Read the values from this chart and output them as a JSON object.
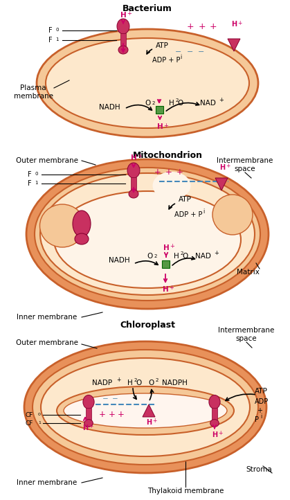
{
  "bg_color": "#ffffff",
  "mem_dark": "#c8602a",
  "mem_mid": "#e8915a",
  "mem_light": "#f5c898",
  "mem_inner": "#fde8cc",
  "mem_lightest": "#fef4e8",
  "protein_body": "#c83060",
  "protein_edge": "#880030",
  "green_box": "#559944",
  "blue_dash": "#4488bb",
  "magenta": "#cc0066",
  "cyan_minus": "#5588aa",
  "black": "#000000",
  "white": "#ffffff",
  "s1_title": "Bacterium",
  "s2_title": "Mitochondrion",
  "s3_title": "Chloroplast",
  "label_plasma": "Plasma\nmembrane",
  "label_outer": "Outer membrane",
  "label_inner1": "Inner membrane",
  "label_inner2": "Inner membrane",
  "label_intermem1": "Intermembrane\nspace",
  "label_intermem2": "Intermembrane\nspace",
  "label_matrix": "Matrix",
  "label_stroma": "Stroma",
  "label_thylakoid": "Thylakoid membrane",
  "label_outer3": "Outer membrane",
  "label_inner3": "Inner membrane"
}
